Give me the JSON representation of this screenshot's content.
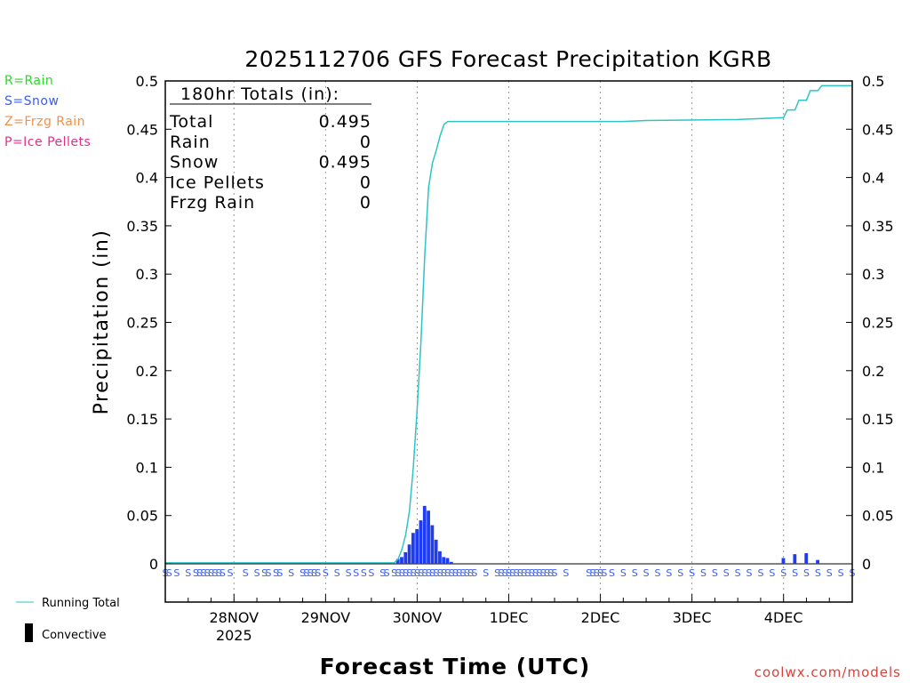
{
  "chart_data": {
    "type": "bar+line",
    "title": "2025112706 GFS Forecast Precipitation KGRB",
    "xlabel": "Forecast Time (UTC)",
    "ylabel": "Precipitation (in)",
    "ylim": [
      0,
      0.5
    ],
    "y_ticks": [
      0,
      0.05,
      0.1,
      0.15,
      0.2,
      0.25,
      0.3,
      0.35,
      0.4,
      0.45,
      0.5
    ],
    "y_tick_labels": [
      "0",
      "0.05",
      "0.1",
      "0.15",
      "0.2",
      "0.25",
      "0.3",
      "0.35",
      "0.4",
      "0.45",
      "0.5"
    ],
    "x_range_hours": [
      0,
      180
    ],
    "x_ticks": [
      {
        "hour": 18,
        "label": "28NOV",
        "sublabel": "2025"
      },
      {
        "hour": 42,
        "label": "29NOV",
        "sublabel": ""
      },
      {
        "hour": 66,
        "label": "30NOV",
        "sublabel": ""
      },
      {
        "hour": 90,
        "label": "1DEC",
        "sublabel": ""
      },
      {
        "hour": 114,
        "label": "2DEC",
        "sublabel": ""
      },
      {
        "hour": 138,
        "label": "3DEC",
        "sublabel": ""
      },
      {
        "hour": 162,
        "label": "4DEC",
        "sublabel": ""
      }
    ],
    "grid": "vertical dotted",
    "running_total": [
      [
        0,
        0.001
      ],
      [
        60,
        0.001
      ],
      [
        61,
        0.005
      ],
      [
        62,
        0.015
      ],
      [
        63,
        0.03
      ],
      [
        64,
        0.055
      ],
      [
        65,
        0.1
      ],
      [
        66,
        0.16
      ],
      [
        67,
        0.23
      ],
      [
        68,
        0.32
      ],
      [
        69,
        0.39
      ],
      [
        70,
        0.415
      ],
      [
        71,
        0.428
      ],
      [
        72,
        0.443
      ],
      [
        73,
        0.455
      ],
      [
        74,
        0.458
      ],
      [
        90,
        0.458
      ],
      [
        120,
        0.458
      ],
      [
        126,
        0.459
      ],
      [
        150,
        0.46
      ],
      [
        162,
        0.462
      ],
      [
        163,
        0.47
      ],
      [
        165,
        0.47
      ],
      [
        166,
        0.48
      ],
      [
        168,
        0.48
      ],
      [
        169,
        0.49
      ],
      [
        171,
        0.49
      ],
      [
        172,
        0.495
      ],
      [
        180,
        0.495
      ]
    ],
    "series": [
      {
        "name": "Snow",
        "color": "#1f3cf5",
        "bars": [
          [
            61,
            0.005
          ],
          [
            62,
            0.007
          ],
          [
            63,
            0.012
          ],
          [
            64,
            0.02
          ],
          [
            65,
            0.032
          ],
          [
            66,
            0.036
          ],
          [
            67,
            0.045
          ],
          [
            68,
            0.06
          ],
          [
            69,
            0.055
          ],
          [
            70,
            0.04
          ],
          [
            71,
            0.025
          ],
          [
            72,
            0.013
          ],
          [
            73,
            0.007
          ],
          [
            74,
            0.006
          ],
          [
            75,
            0.002
          ],
          [
            162,
            0.006
          ],
          [
            165,
            0.01
          ],
          [
            168,
            0.011
          ],
          [
            171,
            0.004
          ]
        ]
      }
    ],
    "ptype_marks": {
      "label": "S",
      "color": "#3a5cf0",
      "hours": [
        0,
        1,
        3,
        6,
        8,
        9,
        10,
        11,
        12,
        13,
        14,
        15,
        17,
        21,
        24,
        26,
        27,
        29,
        30,
        33,
        36,
        37,
        38,
        39,
        40,
        42,
        45,
        48,
        50,
        52,
        54,
        57,
        58,
        60,
        61,
        62,
        63,
        64,
        65,
        66,
        67,
        68,
        69,
        70,
        71,
        72,
        73,
        74,
        75,
        76,
        77,
        78,
        79,
        80,
        81,
        84,
        87,
        88,
        89,
        90,
        91,
        92,
        93,
        94,
        95,
        96,
        97,
        98,
        99,
        100,
        101,
        102,
        105,
        111,
        112,
        113,
        114,
        115,
        117,
        120,
        123,
        126,
        129,
        132,
        135,
        138,
        141,
        144,
        147,
        150,
        153,
        156,
        159,
        162,
        165,
        168,
        171,
        174,
        177,
        180
      ]
    }
  },
  "totals_box": {
    "heading": "180hr Totals (in):",
    "rows": [
      {
        "label": "Total",
        "value": "0.495"
      },
      {
        "label": "Rain",
        "value": "0"
      },
      {
        "label": "Snow",
        "value": "0.495"
      },
      {
        "label": "Ice Pellets",
        "value": "0"
      },
      {
        "label": "Frzg Rain",
        "value": "0"
      }
    ]
  },
  "ptype_legend": [
    {
      "text": "R=Rain",
      "color": "#22dd22"
    },
    {
      "text": "S=Snow",
      "color": "#3a5cf0"
    },
    {
      "text": "Z=Frzg Rain",
      "color": "#f0904a"
    },
    {
      "text": "P=Ice Pellets",
      "color": "#e0308a"
    }
  ],
  "legend": {
    "running_total": {
      "label": "Running Total",
      "color": "#2ec4c4"
    },
    "convective": {
      "label": "Convective",
      "color": "#000000"
    }
  },
  "credit": {
    "text": "coolwx.com/models",
    "color": "#d9423a"
  }
}
